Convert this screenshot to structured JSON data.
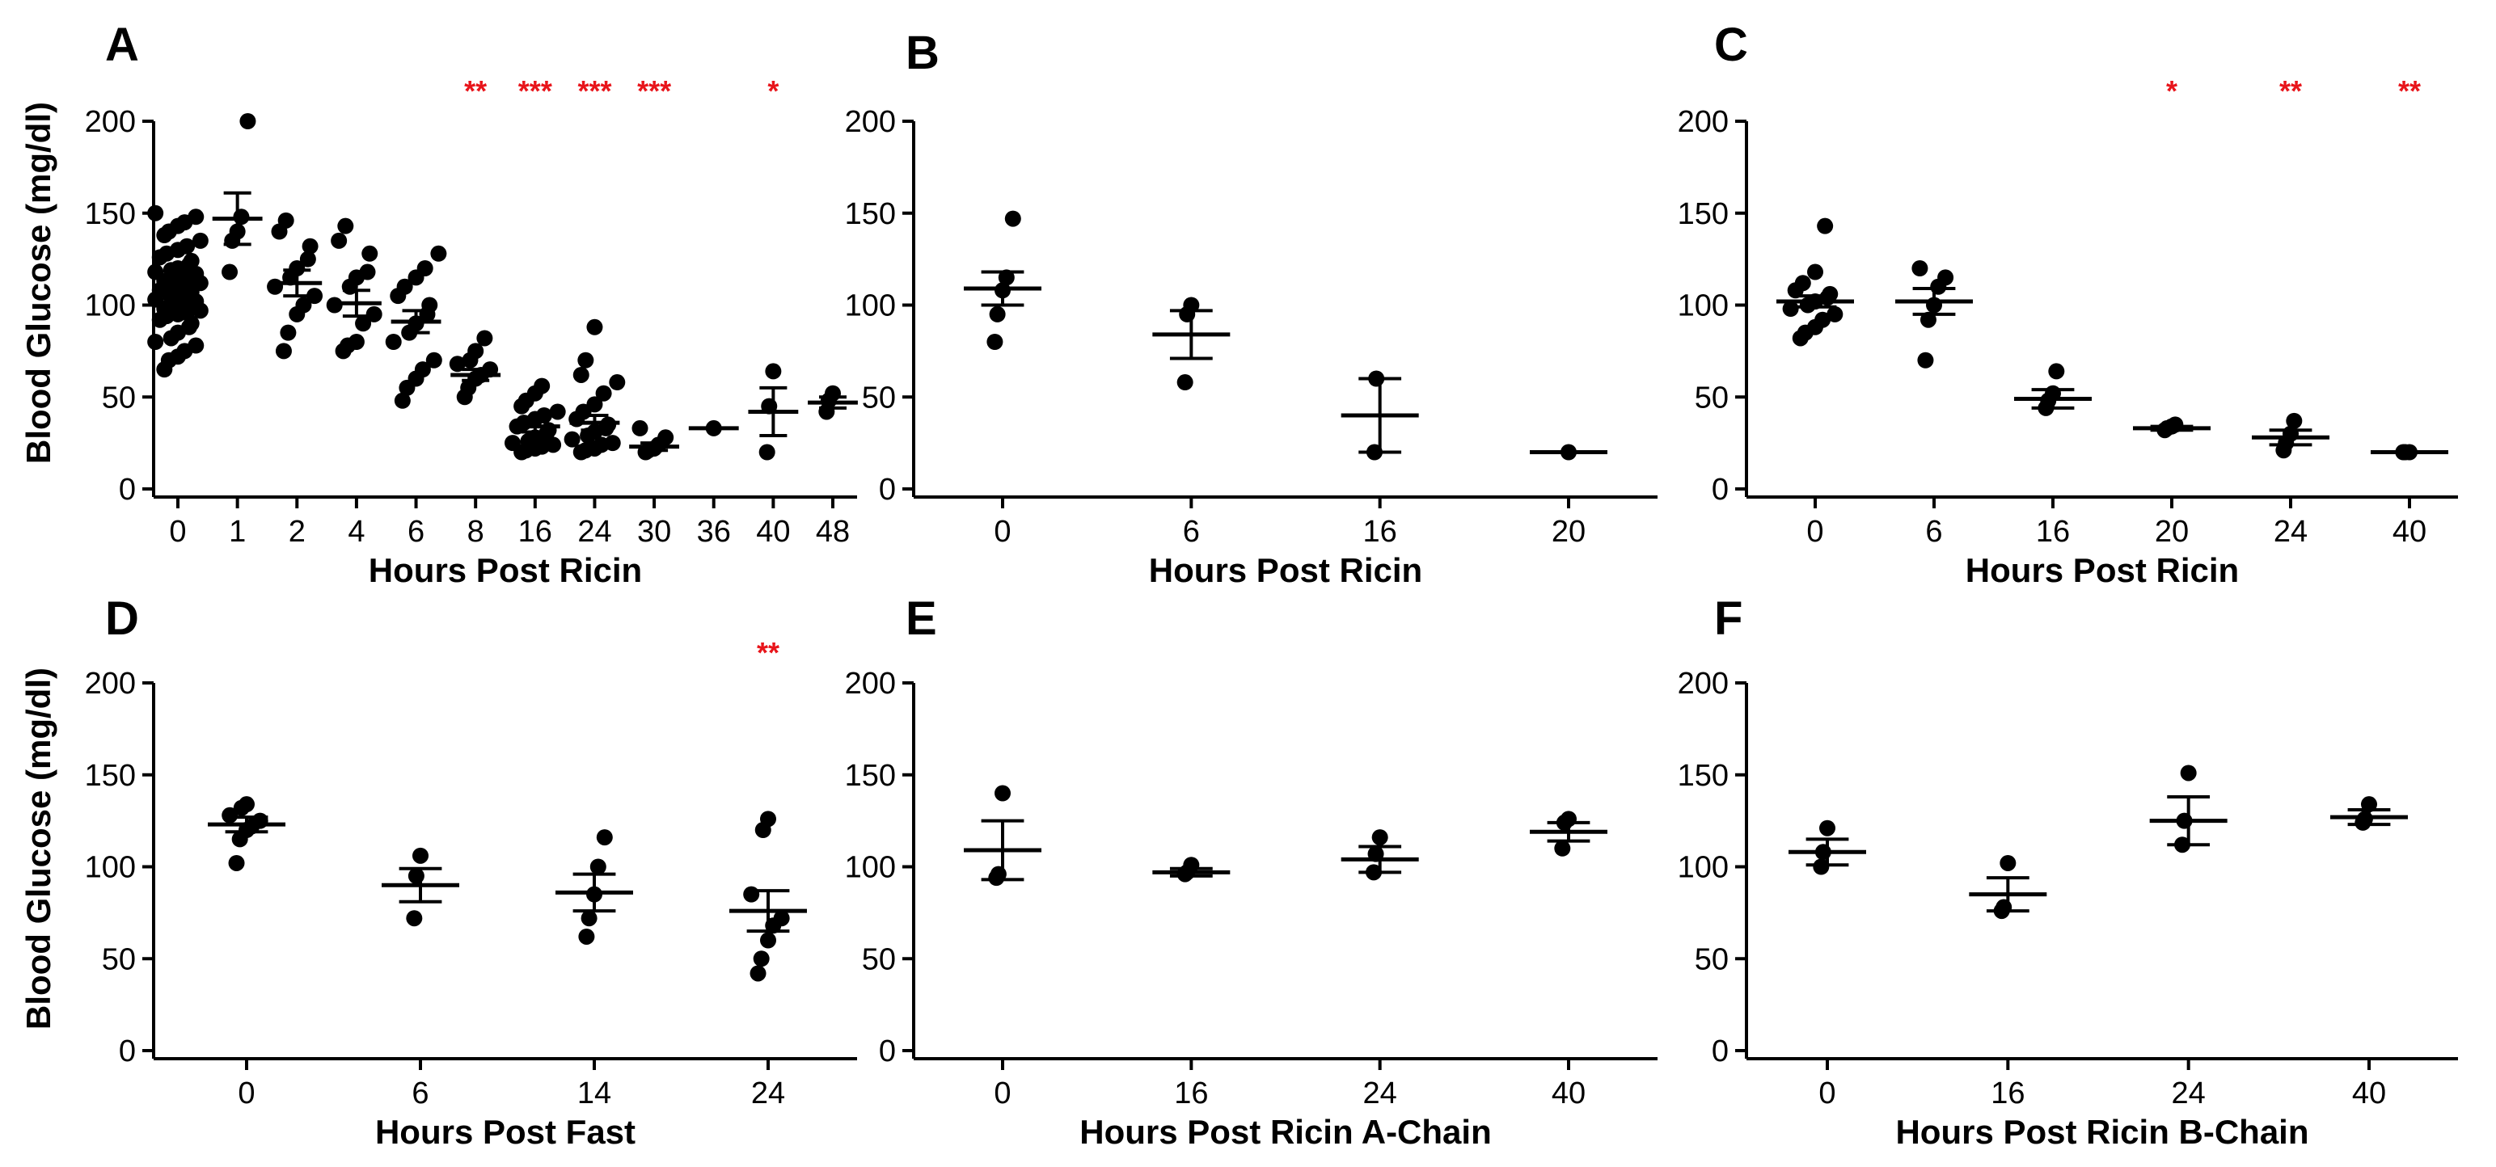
{
  "figure": {
    "shared_ylabel": "Blood Glucose (mg/dl)",
    "sig_color": "#e8151b",
    "point_color": "#000000"
  },
  "chart_data": [
    {
      "panel": "A",
      "type": "scatter",
      "xlabel": "Hours Post Ricin",
      "ylabel": "Blood Glucose (mg/dl)",
      "ylim": [
        0,
        200
      ],
      "yticks": [
        0,
        50,
        100,
        150,
        200
      ],
      "categories": [
        "0",
        "1",
        "2",
        "4",
        "6",
        "8",
        "16",
        "24",
        "30",
        "36",
        "40",
        "48"
      ],
      "groups": [
        {
          "points": [
            65,
            70,
            72,
            75,
            78,
            80,
            82,
            85,
            88,
            90,
            92,
            94,
            95,
            96,
            97,
            98,
            99,
            100,
            101,
            102,
            103,
            104,
            105,
            106,
            107,
            108,
            109,
            110,
            111,
            112,
            113,
            114,
            115,
            116,
            117,
            118,
            119,
            120,
            122,
            124,
            126,
            128,
            130,
            132,
            135,
            138,
            140,
            143,
            145,
            148,
            150
          ],
          "mean": 109,
          "err": 3
        },
        {
          "points": [
            118,
            135,
            140,
            148,
            200
          ],
          "mean": 147,
          "err": 14
        },
        {
          "points": [
            75,
            85,
            95,
            100,
            105,
            110,
            115,
            120,
            125,
            132,
            140,
            146
          ],
          "mean": 112,
          "err": 7
        },
        {
          "points": [
            75,
            78,
            80,
            90,
            95,
            100,
            110,
            115,
            118,
            128,
            135,
            143
          ],
          "mean": 101,
          "err": 7
        },
        {
          "points": [
            48,
            55,
            60,
            65,
            70,
            80,
            85,
            90,
            95,
            100,
            105,
            110,
            115,
            120,
            128
          ],
          "mean": 91,
          "err": 6
        },
        {
          "points": [
            50,
            55,
            60,
            62,
            65,
            68,
            70,
            75,
            82
          ],
          "mean": 62,
          "err": 3
        },
        {
          "points": [
            20,
            21,
            22,
            23,
            24,
            25,
            26,
            28,
            30,
            32,
            34,
            36,
            38,
            40,
            42,
            45,
            48,
            52,
            56
          ],
          "mean": 34,
          "err": 3
        },
        {
          "points": [
            20,
            21,
            22,
            24,
            25,
            27,
            29,
            31,
            33,
            35,
            38,
            42,
            46,
            52,
            58,
            62,
            70,
            88
          ],
          "mean": 36,
          "err": 4
        },
        {
          "points": [
            20,
            21,
            22,
            24,
            28,
            33
          ],
          "mean": 23,
          "err": 2
        },
        {
          "points": [
            33
          ],
          "mean": 33,
          "err": 0
        },
        {
          "points": [
            20,
            45,
            64
          ],
          "mean": 42,
          "err": 13
        },
        {
          "points": [
            42,
            48,
            52
          ],
          "mean": 47,
          "err": 3
        }
      ],
      "significance": [
        {
          "category": "8",
          "label": "**"
        },
        {
          "category": "16",
          "label": "***"
        },
        {
          "category": "24",
          "label": "***"
        },
        {
          "category": "30",
          "label": "***"
        },
        {
          "category": "40",
          "label": "*"
        }
      ]
    },
    {
      "panel": "B",
      "type": "scatter",
      "xlabel": "Hours Post Ricin",
      "ylabel": "",
      "ylim": [
        0,
        200
      ],
      "yticks": [
        0,
        50,
        100,
        150,
        200
      ],
      "categories": [
        "0",
        "6",
        "16",
        "20"
      ],
      "groups": [
        {
          "points": [
            80,
            95,
            108,
            115,
            147
          ],
          "mean": 109,
          "err": 9
        },
        {
          "points": [
            58,
            95,
            100
          ],
          "mean": 84,
          "err": 13
        },
        {
          "points": [
            20,
            60
          ],
          "mean": 40,
          "err": 20
        },
        {
          "points": [
            20
          ],
          "mean": 20,
          "err": 0
        }
      ],
      "significance": []
    },
    {
      "panel": "C",
      "type": "scatter",
      "xlabel": "Hours Post Ricin",
      "ylabel": "",
      "ylim": [
        0,
        200
      ],
      "yticks": [
        0,
        50,
        100,
        150,
        200
      ],
      "categories": [
        "0",
        "6",
        "16",
        "20",
        "24",
        "40"
      ],
      "groups": [
        {
          "points": [
            82,
            85,
            88,
            92,
            95,
            98,
            100,
            102,
            104,
            106,
            108,
            112,
            118,
            143
          ],
          "mean": 102,
          "err": 3
        },
        {
          "points": [
            70,
            92,
            100,
            110,
            115,
            120
          ],
          "mean": 102,
          "err": 7
        },
        {
          "points": [
            44,
            48,
            52,
            64
          ],
          "mean": 49,
          "err": 5
        },
        {
          "points": [
            32,
            33,
            34,
            35
          ],
          "mean": 33,
          "err": 1
        },
        {
          "points": [
            21,
            25,
            30,
            37
          ],
          "mean": 28,
          "err": 4
        },
        {
          "points": [
            20,
            20,
            20
          ],
          "mean": 20,
          "err": 0
        }
      ],
      "significance": [
        {
          "category": "20",
          "label": "*"
        },
        {
          "category": "24",
          "label": "**"
        },
        {
          "category": "40",
          "label": "**"
        }
      ]
    },
    {
      "panel": "D",
      "type": "scatter",
      "xlabel": "Hours Post Fast",
      "ylabel": "Blood Glucose (mg/dl)",
      "ylim": [
        0,
        200
      ],
      "yticks": [
        0,
        50,
        100,
        150,
        200
      ],
      "categories": [
        "0",
        "6",
        "14",
        "24"
      ],
      "groups": [
        {
          "points": [
            102,
            115,
            120,
            122,
            125,
            128,
            132,
            134
          ],
          "mean": 123,
          "err": 4
        },
        {
          "points": [
            72,
            95,
            106
          ],
          "mean": 90,
          "err": 9
        },
        {
          "points": [
            62,
            72,
            85,
            100,
            116
          ],
          "mean": 86,
          "err": 10
        },
        {
          "points": [
            42,
            50,
            60,
            68,
            72,
            85,
            120,
            126
          ],
          "mean": 76,
          "err": 11
        }
      ],
      "significance": [
        {
          "category": "24",
          "label": "**"
        }
      ]
    },
    {
      "panel": "E",
      "type": "scatter",
      "xlabel": "Hours Post Ricin A-Chain",
      "ylabel": "",
      "ylim": [
        0,
        200
      ],
      "yticks": [
        0,
        50,
        100,
        150,
        200
      ],
      "categories": [
        "0",
        "16",
        "24",
        "40"
      ],
      "groups": [
        {
          "points": [
            94,
            96,
            140
          ],
          "mean": 109,
          "err": 16
        },
        {
          "points": [
            96,
            97,
            101
          ],
          "mean": 97,
          "err": 2
        },
        {
          "points": [
            97,
            107,
            116
          ],
          "mean": 104,
          "err": 7
        },
        {
          "points": [
            110,
            124,
            126
          ],
          "mean": 119,
          "err": 5
        }
      ],
      "significance": []
    },
    {
      "panel": "F",
      "type": "scatter",
      "xlabel": "Hours Post Ricin B-Chain",
      "ylabel": "",
      "ylim": [
        0,
        200
      ],
      "yticks": [
        0,
        50,
        100,
        150,
        200
      ],
      "categories": [
        "0",
        "16",
        "24",
        "40"
      ],
      "groups": [
        {
          "points": [
            100,
            108,
            121
          ],
          "mean": 108,
          "err": 7
        },
        {
          "points": [
            76,
            78,
            102
          ],
          "mean": 85,
          "err": 9
        },
        {
          "points": [
            112,
            125,
            151
          ],
          "mean": 125,
          "err": 13
        },
        {
          "points": [
            124,
            126,
            134
          ],
          "mean": 127,
          "err": 4
        }
      ],
      "significance": []
    }
  ]
}
